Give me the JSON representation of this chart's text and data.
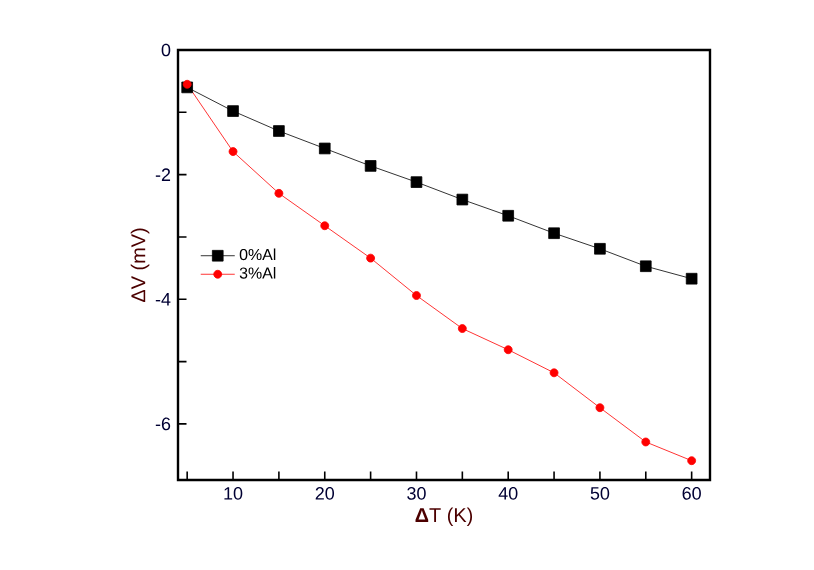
{
  "chart_data": {
    "type": "line",
    "xlabel": "**Δ**T (K)",
    "ylabel": "ΔV (mV)",
    "x": [
      5,
      10,
      15,
      20,
      25,
      30,
      35,
      40,
      45,
      50,
      55,
      60
    ],
    "series": [
      {
        "name": "0%Al",
        "color": "#000000",
        "marker": "square",
        "values": [
          -0.6,
          -0.98,
          -1.3,
          -1.58,
          -1.86,
          -2.12,
          -2.4,
          -2.66,
          -2.94,
          -3.19,
          -3.47,
          -3.67
        ]
      },
      {
        "name": "3%Al",
        "color": "#ff0000",
        "marker": "circle",
        "values": [
          -0.55,
          -1.63,
          -2.3,
          -2.82,
          -3.34,
          -3.94,
          -4.47,
          -4.81,
          -5.18,
          -5.74,
          -6.29,
          -6.59
        ]
      }
    ],
    "xlim": [
      4,
      62
    ],
    "ylim": [
      -6.9,
      0
    ],
    "xticks": [
      {
        "value": 5,
        "label": null
      },
      10,
      {
        "value": 15,
        "label": null
      },
      20,
      {
        "value": 25,
        "label": null
      },
      30,
      {
        "value": 35,
        "label": null
      },
      40,
      {
        "value": 45,
        "label": null
      },
      50,
      {
        "value": 55,
        "label": null
      },
      60
    ],
    "yticks": [
      -6,
      {
        "value": -5,
        "label": null
      },
      -4,
      {
        "value": -3,
        "label": null
      },
      -2,
      {
        "value": -1,
        "label": null
      },
      0
    ],
    "legend": "left",
    "grid": false,
    "line_style": "solid"
  }
}
